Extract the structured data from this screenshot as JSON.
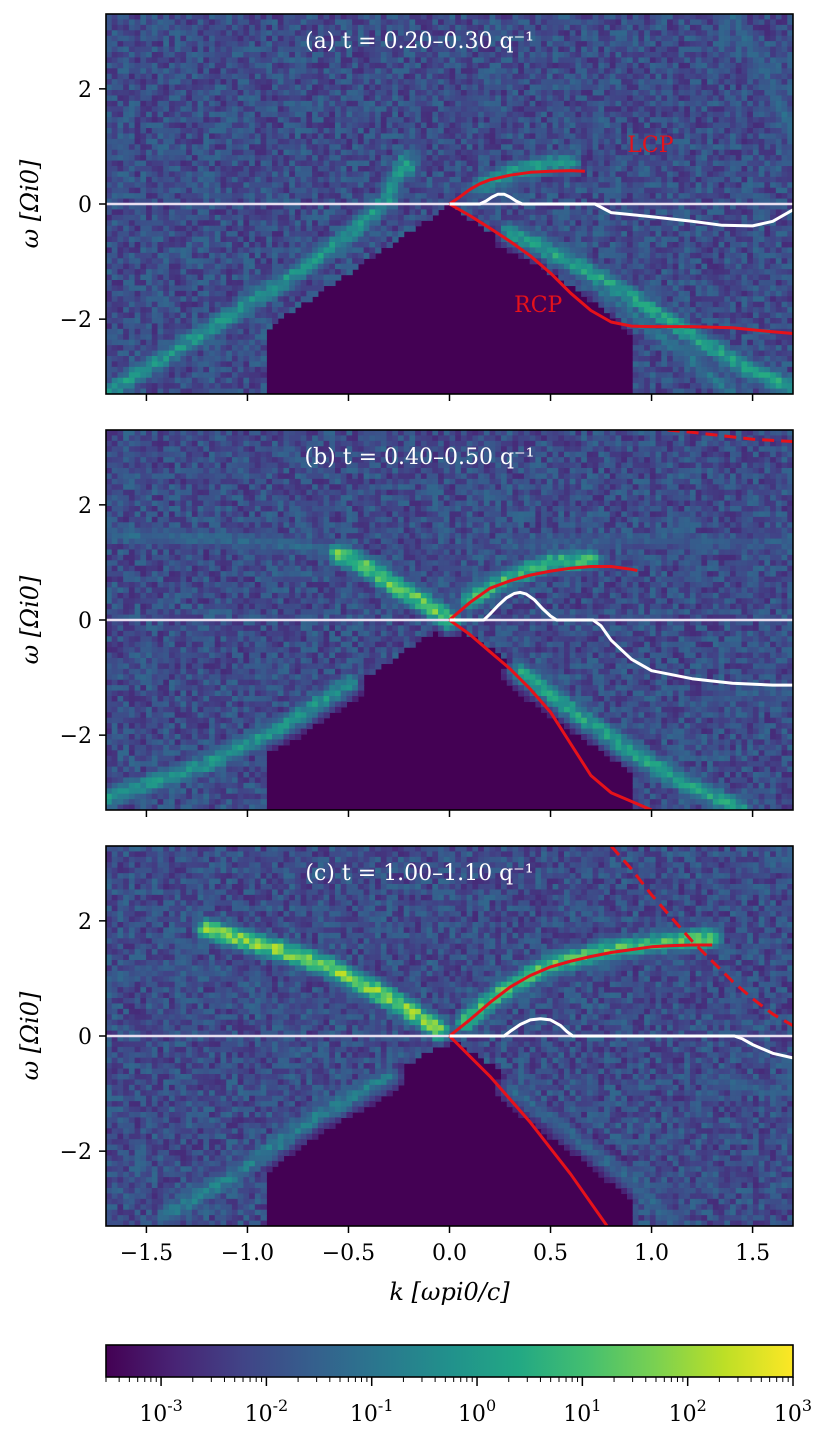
{
  "chart_data": [
    {
      "type": "heatmap",
      "title": "(a) t = 0.20–0.30 q⁻¹",
      "ylabel": "ω [Ωi0]",
      "xlim": [
        -1.7,
        1.7
      ],
      "ylim": [
        -3.3,
        3.3
      ],
      "yticks": [
        -2,
        0,
        2
      ],
      "annotations": [
        {
          "text": "LCP",
          "x": 0.88,
          "y": 0.9
        },
        {
          "text": "RCP",
          "x": 0.32,
          "y": -1.88
        }
      ],
      "curves": [
        {
          "name": "LCP",
          "color": "#e6121a",
          "style": "solid",
          "x": [
            0,
            0.05,
            0.1,
            0.15,
            0.2,
            0.3,
            0.4,
            0.5,
            0.6,
            0.67
          ],
          "y": [
            0,
            0.12,
            0.25,
            0.35,
            0.42,
            0.5,
            0.55,
            0.57,
            0.58,
            0.57
          ]
        },
        {
          "name": "RCP",
          "color": "#e6121a",
          "style": "solid",
          "x": [
            0,
            0.1,
            0.2,
            0.3,
            0.4,
            0.5,
            0.6,
            0.7,
            0.8,
            0.9,
            1.0,
            1.2,
            1.4,
            1.6,
            1.7
          ],
          "y": [
            0,
            -0.2,
            -0.42,
            -0.65,
            -0.9,
            -1.2,
            -1.55,
            -1.85,
            -2.05,
            -2.12,
            -2.13,
            -2.13,
            -2.15,
            -2.22,
            -2.25
          ]
        },
        {
          "name": "growth",
          "color": "#ffffff",
          "style": "solid",
          "x": [
            0,
            0.15,
            0.18,
            0.21,
            0.24,
            0.27,
            0.3,
            0.33,
            0.36,
            0.7,
            0.72,
            0.8,
            1.0,
            1.2,
            1.35,
            1.5,
            1.6,
            1.7
          ],
          "y": [
            0,
            0,
            0.05,
            0.12,
            0.17,
            0.17,
            0.12,
            0.05,
            0,
            0,
            0,
            -0.15,
            -0.22,
            -0.3,
            -0.37,
            -0.38,
            -0.3,
            -0.1
          ]
        }
      ],
      "ridges": [
        {
          "points": [
            [
              -1.7,
              -3.3
            ],
            [
              -1.2,
              -2.2
            ],
            [
              -0.8,
              -1.3
            ],
            [
              -0.5,
              -0.55
            ],
            [
              -0.3,
              0.1
            ],
            [
              -0.27,
              0.4
            ],
            [
              -0.22,
              0.75
            ],
            [
              -0.2,
              0.6
            ]
          ],
          "intensity": 0.55
        },
        {
          "points": [
            [
              0.15,
              0.3
            ],
            [
              0.3,
              0.55
            ],
            [
              0.5,
              0.7
            ],
            [
              0.6,
              0.7
            ]
          ],
          "intensity": 0.55
        },
        {
          "points": [
            [
              0.3,
              -0.5
            ],
            [
              0.6,
              -1.0
            ],
            [
              0.9,
              -1.6
            ],
            [
              1.2,
              -2.3
            ],
            [
              1.5,
              -2.9
            ],
            [
              1.7,
              -3.2
            ]
          ],
          "intensity": 0.6
        },
        {
          "points": [
            [
              0.55,
              -0.9
            ],
            [
              0.9,
              -1.9
            ],
            [
              1.2,
              -2.7
            ],
            [
              1.4,
              -3.3
            ]
          ],
          "intensity": 0.4
        },
        {
          "points": [
            [
              1.4,
              3.3
            ],
            [
              1.55,
              2.3
            ],
            [
              1.7,
              1.3
            ]
          ],
          "intensity": 0.35
        }
      ]
    },
    {
      "type": "heatmap",
      "title": "(b) t = 0.40–0.50 q⁻¹",
      "ylabel": "ω [Ωi0]",
      "xlim": [
        -1.7,
        1.7
      ],
      "ylim": [
        -3.3,
        3.3
      ],
      "yticks": [
        -2,
        0,
        2
      ],
      "curves": [
        {
          "name": "LCP",
          "color": "#e6121a",
          "style": "solid",
          "x": [
            0,
            0.1,
            0.2,
            0.3,
            0.4,
            0.5,
            0.6,
            0.7,
            0.8,
            0.9,
            0.93
          ],
          "y": [
            0,
            0.3,
            0.55,
            0.68,
            0.78,
            0.85,
            0.9,
            0.93,
            0.93,
            0.88,
            0.86
          ]
        },
        {
          "name": "RCP",
          "color": "#e6121a",
          "style": "solid",
          "x": [
            0,
            0.1,
            0.2,
            0.3,
            0.4,
            0.5,
            0.6,
            0.7,
            0.8,
            0.9,
            1.0
          ],
          "y": [
            0,
            -0.25,
            -0.55,
            -0.85,
            -1.2,
            -1.6,
            -2.15,
            -2.7,
            -3.0,
            -3.15,
            -3.3
          ]
        },
        {
          "name": "dispersion-upper",
          "color": "#e6121a",
          "style": "dashed",
          "x": [
            1.08,
            1.2,
            1.3,
            1.4,
            1.5,
            1.6,
            1.7
          ],
          "y": [
            3.3,
            3.26,
            3.22,
            3.18,
            3.14,
            3.12,
            3.1
          ]
        },
        {
          "name": "growth",
          "color": "#ffffff",
          "style": "solid",
          "x": [
            0,
            0.17,
            0.2,
            0.24,
            0.28,
            0.32,
            0.35,
            0.38,
            0.42,
            0.46,
            0.5,
            0.53,
            0.71,
            0.75,
            0.8,
            0.9,
            1.0,
            1.2,
            1.4,
            1.6,
            1.7
          ],
          "y": [
            0,
            0,
            0.1,
            0.25,
            0.38,
            0.46,
            0.48,
            0.45,
            0.35,
            0.2,
            0.07,
            0,
            0,
            -0.1,
            -0.35,
            -0.68,
            -0.88,
            -1.02,
            -1.1,
            -1.13,
            -1.13
          ]
        }
      ],
      "ridges": [
        {
          "points": [
            [
              -0.55,
              1.15
            ],
            [
              -0.4,
              0.9
            ],
            [
              -0.25,
              0.55
            ],
            [
              -0.15,
              0.35
            ],
            [
              0,
              0
            ]
          ],
          "intensity": 0.8
        },
        {
          "points": [
            [
              -1.7,
              1.5
            ],
            [
              -1.2,
              1.4
            ],
            [
              -0.9,
              1.35
            ],
            [
              -0.6,
              1.2
            ]
          ],
          "intensity": 0.35
        },
        {
          "points": [
            [
              -0.5,
              -1.1
            ],
            [
              -0.8,
              -1.8
            ],
            [
              -1.2,
              -2.5
            ],
            [
              -1.7,
              -3.1
            ]
          ],
          "intensity": 0.55
        },
        {
          "points": [
            [
              0.1,
              0.35
            ],
            [
              0.3,
              0.75
            ],
            [
              0.5,
              1.0
            ],
            [
              0.7,
              1.05
            ]
          ],
          "intensity": 0.7
        },
        {
          "points": [
            [
              0.35,
              -0.9
            ],
            [
              0.6,
              -1.55
            ],
            [
              0.9,
              -2.3
            ],
            [
              1.2,
              -2.9
            ],
            [
              1.45,
              -3.3
            ]
          ],
          "intensity": 0.6
        },
        {
          "points": [
            [
              1.2,
              -1.5
            ],
            [
              1.5,
              -1.2
            ],
            [
              1.7,
              -1.3
            ]
          ],
          "intensity": 0.3
        },
        {
          "points": [
            [
              0.3,
              1.3
            ],
            [
              0.9,
              1.4
            ],
            [
              1.5,
              1.3
            ],
            [
              1.7,
              1.4
            ]
          ],
          "intensity": 0.3
        }
      ]
    },
    {
      "type": "heatmap",
      "title": "(c) t = 1.00–1.10 q⁻¹",
      "ylabel": "ω [Ωi0]",
      "xlabel": "k [ωpi0/c]",
      "xlim": [
        -1.7,
        1.7
      ],
      "ylim": [
        -3.3,
        3.3
      ],
      "yticks": [
        -2,
        0,
        2
      ],
      "xticks": [
        -1.5,
        -1.0,
        -0.5,
        0.0,
        0.5,
        1.0,
        1.5
      ],
      "curves": [
        {
          "name": "LCP",
          "color": "#e6121a",
          "style": "solid",
          "x": [
            0,
            0.1,
            0.2,
            0.3,
            0.4,
            0.5,
            0.6,
            0.7,
            0.8,
            0.9,
            1.0,
            1.1,
            1.2,
            1.3
          ],
          "y": [
            0,
            0.28,
            0.58,
            0.85,
            1.05,
            1.2,
            1.3,
            1.38,
            1.45,
            1.5,
            1.55,
            1.57,
            1.58,
            1.58
          ]
        },
        {
          "name": "RCP",
          "color": "#e6121a",
          "style": "solid",
          "x": [
            0,
            0.1,
            0.2,
            0.3,
            0.4,
            0.5,
            0.6,
            0.7,
            0.78
          ],
          "y": [
            0,
            -0.35,
            -0.7,
            -1.1,
            -1.5,
            -1.95,
            -2.4,
            -2.9,
            -3.3
          ]
        },
        {
          "name": "dispersion-upper",
          "color": "#e6121a",
          "style": "dashed",
          "x": [
            0.8,
            0.9,
            1.0,
            1.1,
            1.2,
            1.3,
            1.4,
            1.5,
            1.6,
            1.7
          ],
          "y": [
            3.3,
            2.9,
            2.45,
            2.05,
            1.65,
            1.3,
            0.95,
            0.65,
            0.38,
            0.18
          ]
        },
        {
          "name": "growth",
          "color": "#ffffff",
          "style": "solid",
          "x": [
            0,
            0.27,
            0.3,
            0.35,
            0.4,
            0.45,
            0.5,
            0.55,
            0.58,
            0.61,
            1.41,
            1.45,
            1.5,
            1.6,
            1.7
          ],
          "y": [
            0,
            0,
            0.08,
            0.2,
            0.28,
            0.3,
            0.28,
            0.18,
            0.08,
            0,
            0,
            -0.05,
            -0.15,
            -0.3,
            -0.38
          ]
        }
      ],
      "ridges": [
        {
          "points": [
            [
              -1.2,
              1.85
            ],
            [
              -0.9,
              1.55
            ],
            [
              -0.6,
              1.2
            ],
            [
              -0.4,
              0.85
            ],
            [
              -0.2,
              0.45
            ],
            [
              -0.05,
              0.1
            ]
          ],
          "intensity": 0.85
        },
        {
          "points": [
            [
              0.08,
              0.25
            ],
            [
              0.25,
              0.75
            ],
            [
              0.5,
              1.25
            ],
            [
              0.8,
              1.5
            ],
            [
              1.1,
              1.65
            ],
            [
              1.3,
              1.7
            ]
          ],
          "intensity": 0.75
        },
        {
          "points": [
            [
              -0.3,
              -0.7
            ],
            [
              -0.7,
              -1.5
            ],
            [
              -1.1,
              -2.5
            ],
            [
              -1.4,
              -3.1
            ]
          ],
          "intensity": 0.45
        },
        {
          "points": [
            [
              0.3,
              -0.9
            ],
            [
              0.6,
              -1.7
            ],
            [
              0.9,
              -2.5
            ],
            [
              1.1,
              -3.2
            ]
          ],
          "intensity": 0.35
        },
        {
          "points": [
            [
              1.3,
              -0.8
            ],
            [
              1.5,
              -0.9
            ],
            [
              1.7,
              -1.0
            ]
          ],
          "intensity": 0.3
        },
        {
          "points": [
            [
              -1.7,
              1.0
            ],
            [
              -1.4,
              1.2
            ],
            [
              -1.1,
              1.1
            ]
          ],
          "intensity": 0.3
        }
      ]
    }
  ],
  "colorbar": {
    "colormap": "viridis",
    "scale": "log",
    "range": [
      0.0003,
      1000
    ],
    "ticks": [
      {
        "value": 0.001,
        "label": "10",
        "exp": "-3"
      },
      {
        "value": 0.01,
        "label": "10",
        "exp": "-2"
      },
      {
        "value": 0.1,
        "label": "10",
        "exp": "-1"
      },
      {
        "value": 1,
        "label": "10",
        "exp": "0"
      },
      {
        "value": 10,
        "label": "10",
        "exp": "1"
      },
      {
        "value": 100,
        "label": "10",
        "exp": "2"
      },
      {
        "value": 1000,
        "label": "10",
        "exp": "3"
      }
    ]
  },
  "colors": {
    "background_heat": "#440154",
    "lcp_rcp": "#e6121a",
    "growth_curve": "#ffffff",
    "zero_line": "#e8dff0"
  }
}
